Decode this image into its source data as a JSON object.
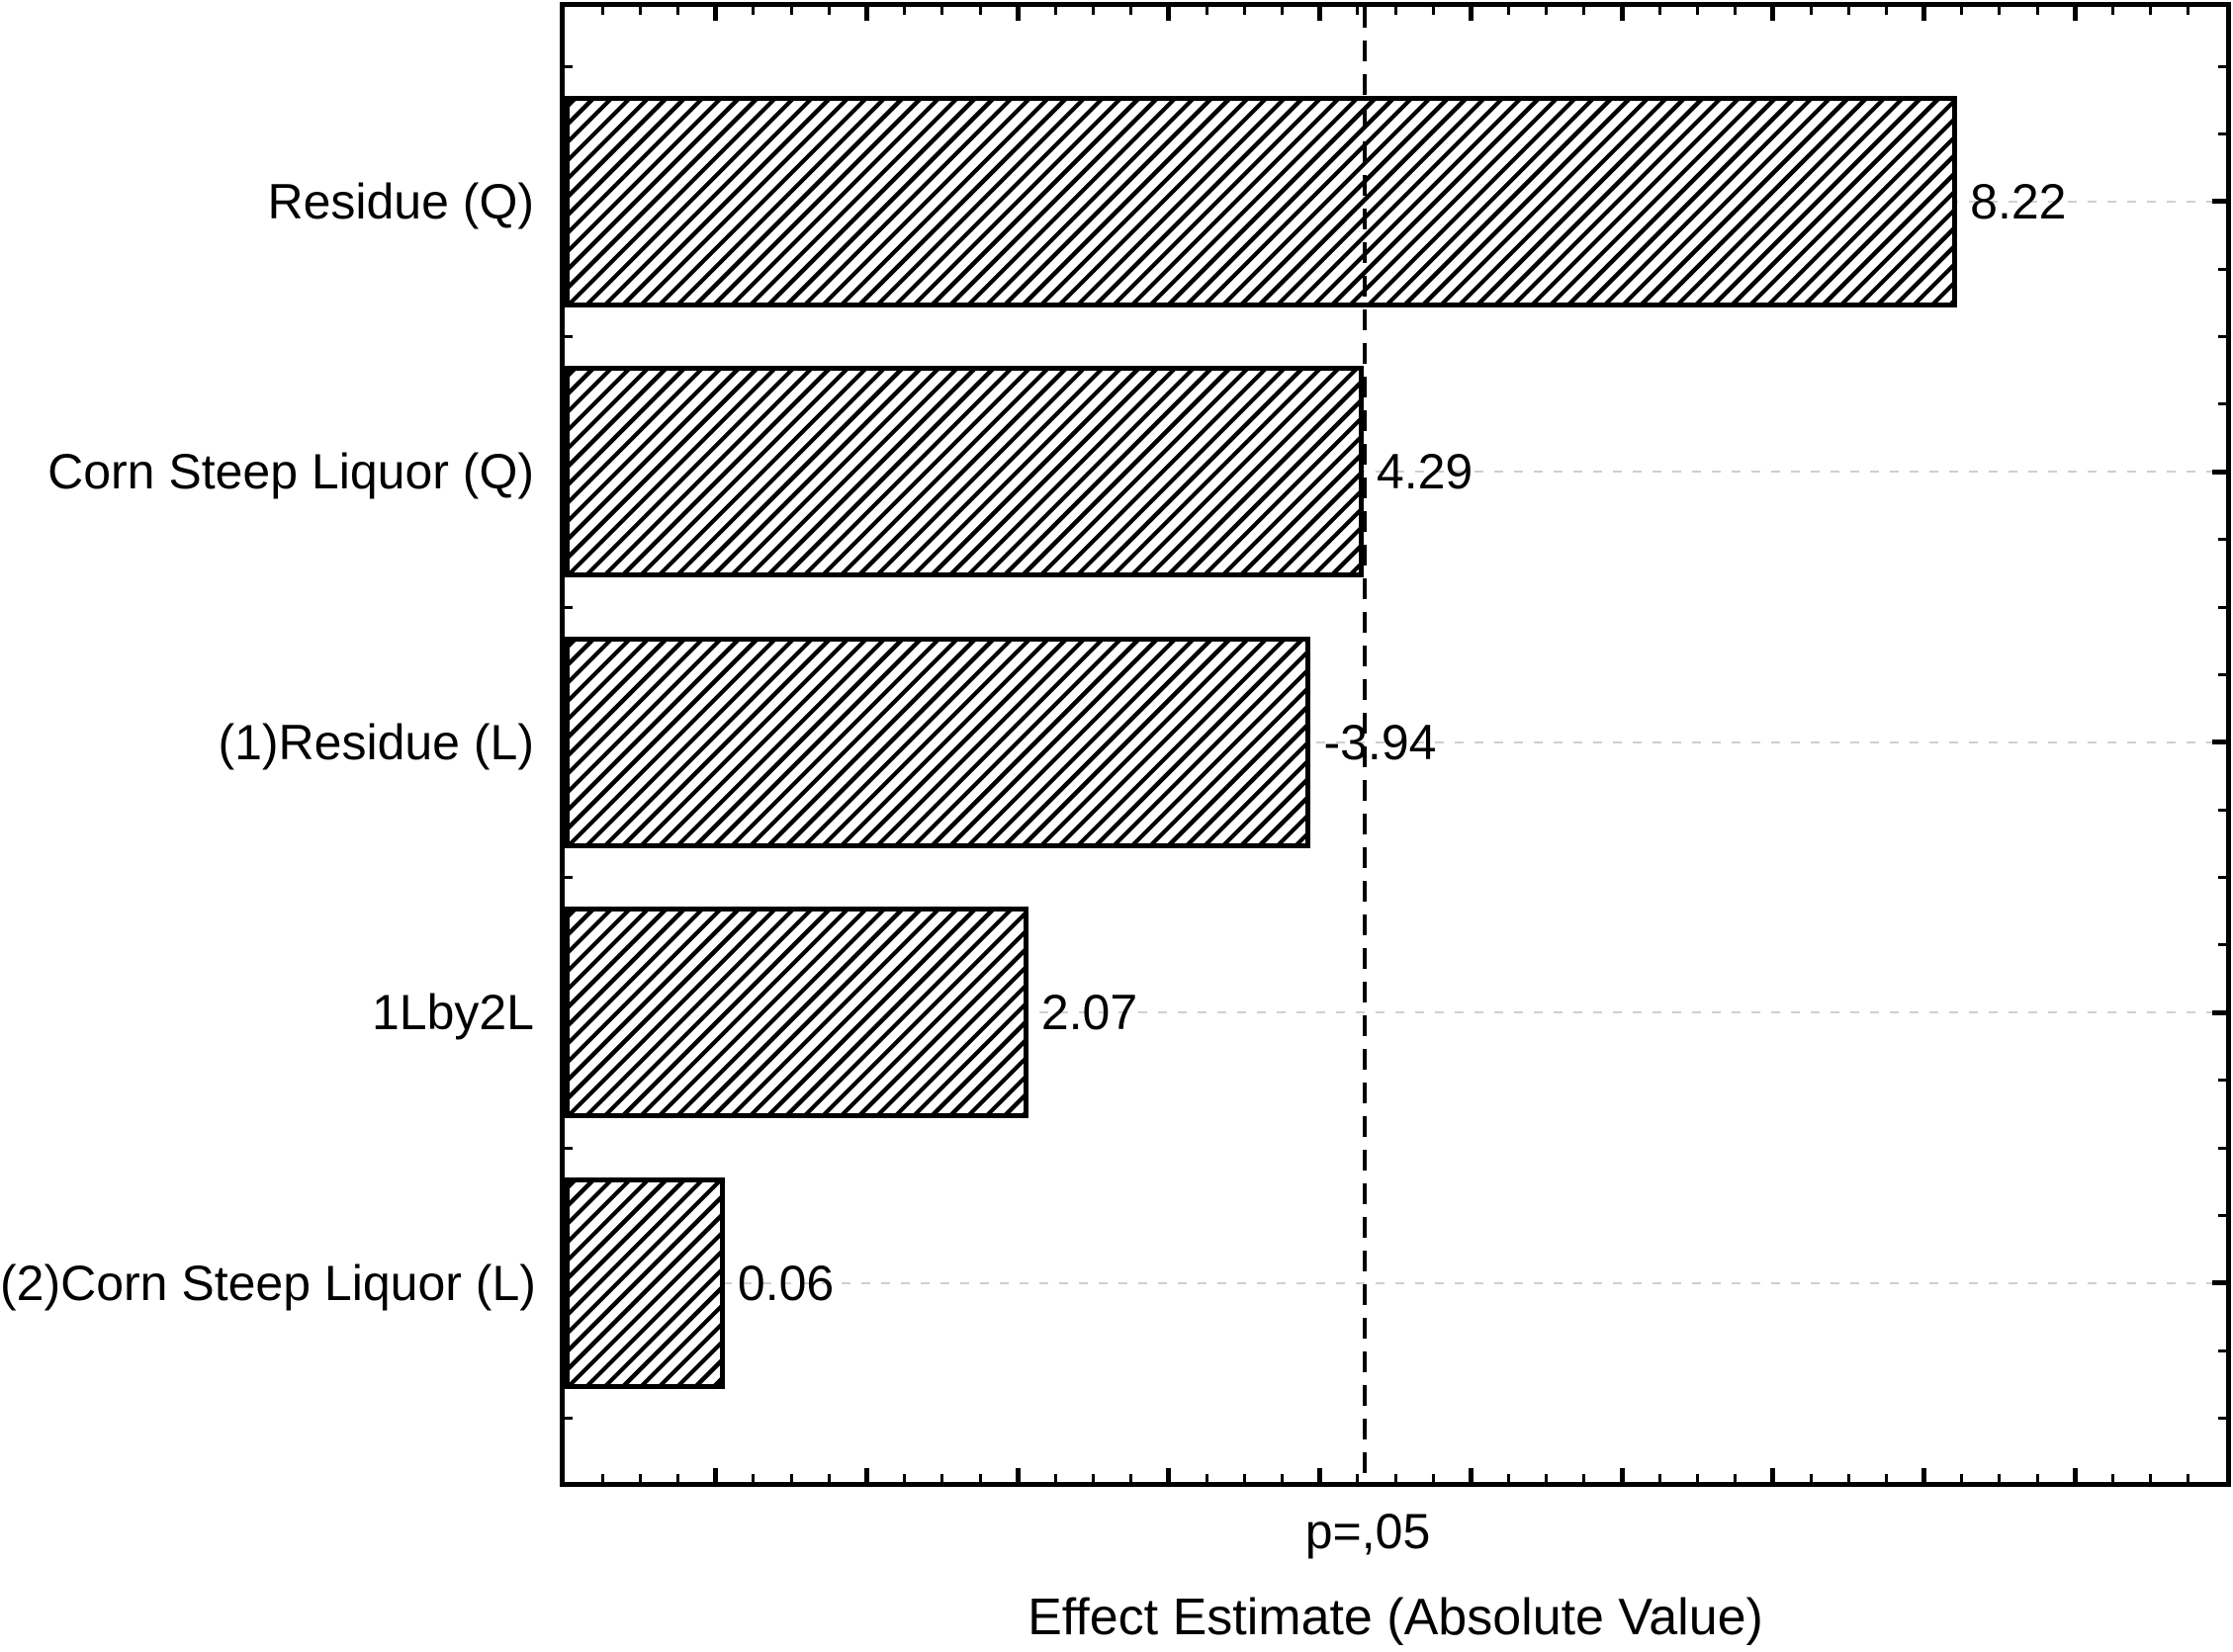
{
  "chart_data": {
    "type": "bar",
    "orientation": "horizontal",
    "title": "",
    "xlabel": "Effect Estimate (Absolute Value)",
    "ylabel": "",
    "categories": [
      "Residue (Q)",
      "Corn Steep Liquor (Q)",
      "(1)Residue (L)",
      "1Lby2L",
      "(2)Corn Steep Liquor (L)"
    ],
    "values": [
      8.22,
      4.29,
      -3.94,
      2.07,
      0.06
    ],
    "value_labels": [
      "8.22",
      "4.29",
      "-3.94",
      "2.07",
      "0.06"
    ],
    "bars_drawn_as": "absolute value, starting at left plot edge",
    "significance_line": {
      "label": "p=,05",
      "value": 4.3,
      "style": "black dashed vertical line"
    },
    "xlim": [
      -1,
      10
    ],
    "x_major_ticks": [
      0,
      1,
      2,
      3,
      4,
      5,
      6,
      7,
      8,
      9
    ],
    "x_minor_step": 0.25,
    "x_tick_labels_visible": false,
    "grid": "light dashed horizontal gridline at each category center",
    "legend_position": "none",
    "bar_style": {
      "fill": "#ffffff",
      "hatch": "forward-diagonal-hatch",
      "hatch_color": "#000000",
      "border_color": "#000000"
    },
    "colors": {
      "background": "#ffffff",
      "axis": "#000000",
      "text": "#000000",
      "gridline": "#cfcfcf"
    }
  }
}
